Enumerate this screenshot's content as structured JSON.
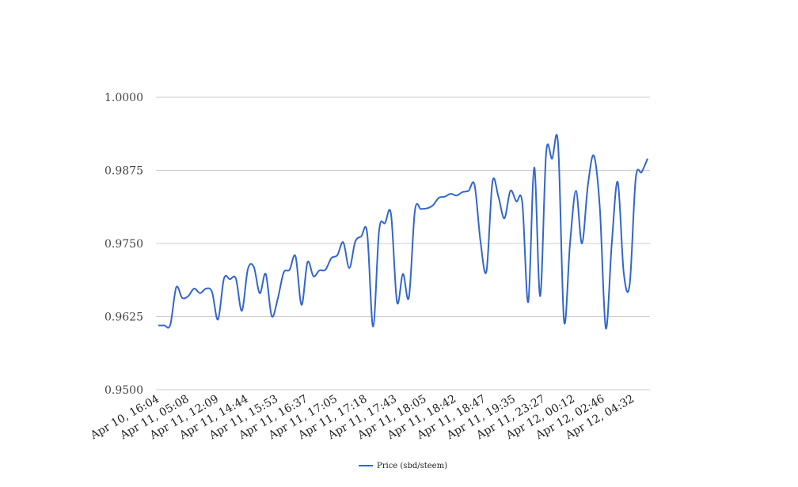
{
  "chart_data": {
    "type": "line",
    "title": "",
    "xlabel": "",
    "ylabel": "",
    "ylim": [
      0.95,
      1.0
    ],
    "y_ticks": [
      "1.0000",
      "0.9875",
      "0.9750",
      "0.9625",
      "0.9500"
    ],
    "y_tick_values": [
      1.0,
      0.9875,
      0.975,
      0.9625,
      0.95
    ],
    "x_tick_labels": [
      "Apr 10, 16:04",
      "Apr 11, 05:08",
      "Apr 11, 12:09",
      "Apr 11, 14:44",
      "Apr 11, 15:53",
      "Apr 11, 16:37",
      "Apr 11, 17:05",
      "Apr 11, 17:18",
      "Apr 11, 17:43",
      "Apr 11, 18:05",
      "Apr 11, 18:42",
      "Apr 11, 18:47",
      "Apr 11, 19:35",
      "Apr 11, 23:27",
      "Apr 12, 00:12",
      "Apr 12, 02:46",
      "Apr 12, 04:32"
    ],
    "grid": true,
    "legend_position": "bottom",
    "series": [
      {
        "name": "Price (sbd/steem)",
        "color": "#3366cc",
        "values": [
          0.961,
          0.961,
          0.9611,
          0.9675,
          0.9657,
          0.966,
          0.9673,
          0.9665,
          0.9673,
          0.9667,
          0.962,
          0.969,
          0.9689,
          0.969,
          0.9635,
          0.9706,
          0.971,
          0.9665,
          0.9698,
          0.9626,
          0.9655,
          0.97,
          0.9705,
          0.9728,
          0.9645,
          0.9718,
          0.9694,
          0.9704,
          0.9705,
          0.9725,
          0.973,
          0.9752,
          0.9708,
          0.9753,
          0.9762,
          0.9768,
          0.9608,
          0.9772,
          0.9785,
          0.98,
          0.965,
          0.9698,
          0.9658,
          0.9806,
          0.9809,
          0.981,
          0.9815,
          0.9828,
          0.983,
          0.9835,
          0.9832,
          0.9838,
          0.984,
          0.985,
          0.9753,
          0.9703,
          0.9855,
          0.983,
          0.9793,
          0.984,
          0.9822,
          0.982,
          0.965,
          0.988,
          0.966,
          0.9905,
          0.9895,
          0.992,
          0.9617,
          0.975,
          0.984,
          0.975,
          0.985,
          0.99,
          0.981,
          0.9605,
          0.975,
          0.9855,
          0.97,
          0.968,
          0.986,
          0.9872,
          0.9895
        ]
      }
    ]
  }
}
